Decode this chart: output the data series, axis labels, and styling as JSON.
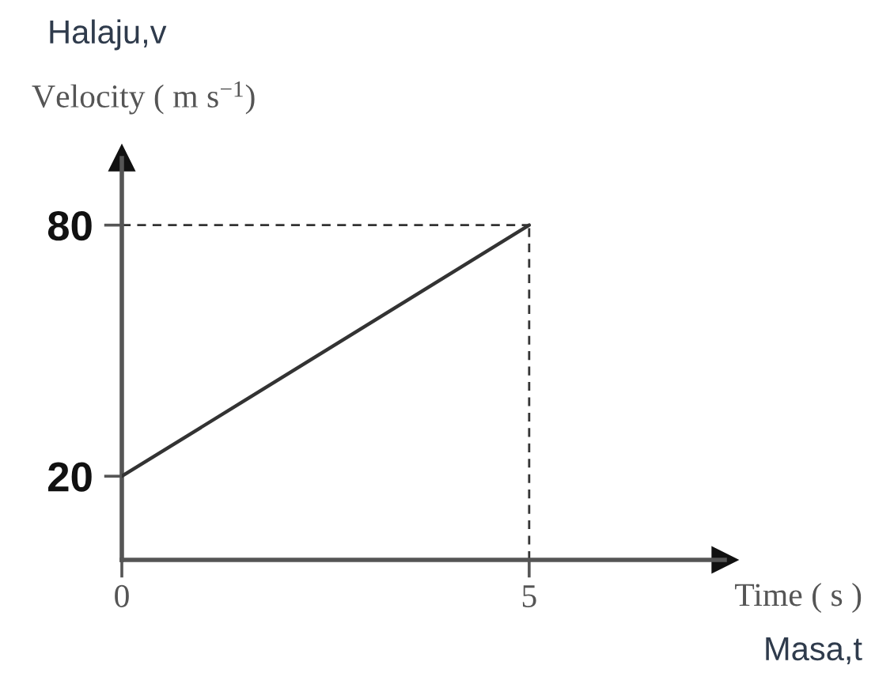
{
  "chart_data": {
    "type": "line",
    "ylabel": "Halaju,v\nVelocity ( m s$^{−1}$)",
    "xlabel": "Time ( s )\nMasa,t",
    "x": [
      0,
      5
    ],
    "series": [
      {
        "color": "#333333",
        "values": [
          20,
          80
        ]
      }
    ],
    "xlim": [
      0,
      7.4
    ],
    "ylim": [
      0,
      96
    ],
    "xticks": [
      0,
      5
    ],
    "yticks": [
      20,
      80
    ],
    "ref_lines": [
      {
        "axis": "y",
        "value": 80,
        "line_style": "dashed",
        "color": "#333333"
      },
      {
        "axis": "x",
        "value": 5,
        "line_style": "dashed",
        "color": "#333333"
      }
    ],
    "grid": false
  }
}
